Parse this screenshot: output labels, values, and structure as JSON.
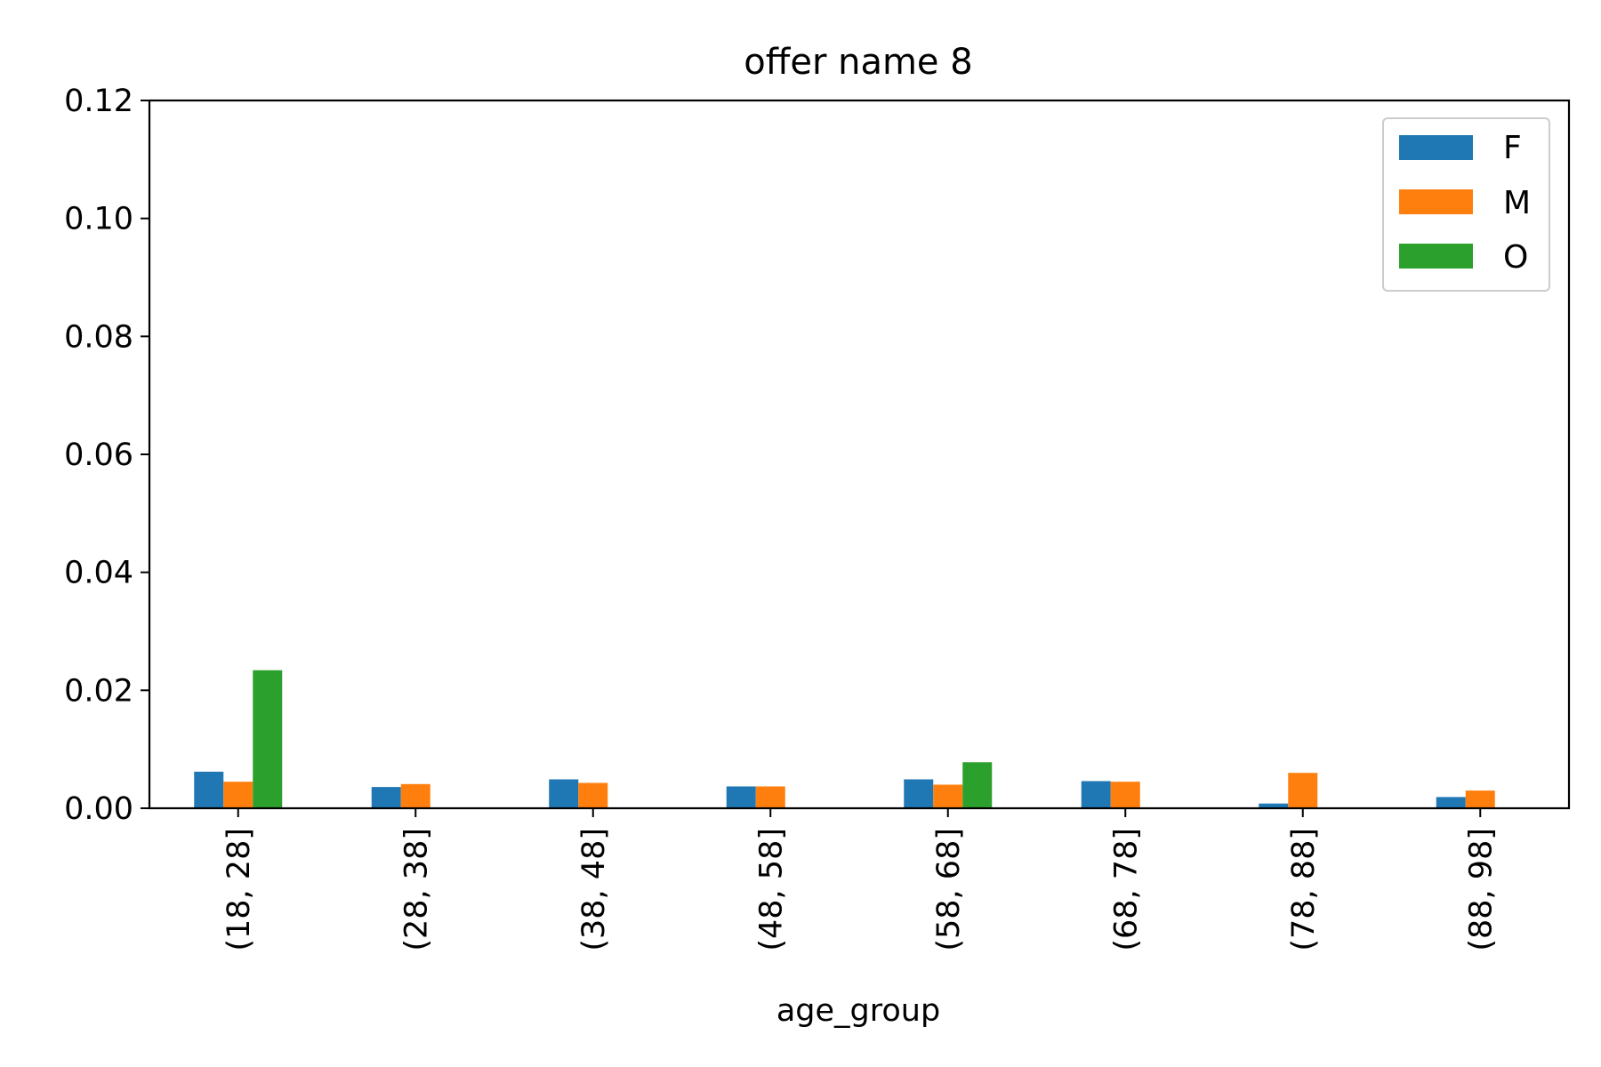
{
  "chart_data": {
    "type": "bar",
    "title": "offer name 8",
    "xlabel": "age_group",
    "ylabel": "",
    "ylim": [
      0,
      0.12
    ],
    "yticks": [
      "0.00",
      "0.02",
      "0.04",
      "0.06",
      "0.08",
      "0.10",
      "0.12"
    ],
    "categories": [
      "(18, 28]",
      "(28, 38]",
      "(38, 48]",
      "(48, 58]",
      "(58, 68]",
      "(68, 78]",
      "(78, 88]",
      "(88, 98]"
    ],
    "series": [
      {
        "name": "F",
        "color": "#1f77b4",
        "values": [
          0.0062,
          0.0036,
          0.0049,
          0.0037,
          0.0049,
          0.0046,
          0.0008,
          0.0019
        ]
      },
      {
        "name": "M",
        "color": "#ff7f0e",
        "values": [
          0.0045,
          0.0041,
          0.0043,
          0.0037,
          0.004,
          0.0045,
          0.006,
          0.003
        ]
      },
      {
        "name": "O",
        "color": "#2ca02c",
        "values": [
          0.0234,
          0,
          0,
          0,
          0.0078,
          0,
          0,
          0
        ]
      }
    ],
    "legend_position": "top-right",
    "grid": false
  }
}
